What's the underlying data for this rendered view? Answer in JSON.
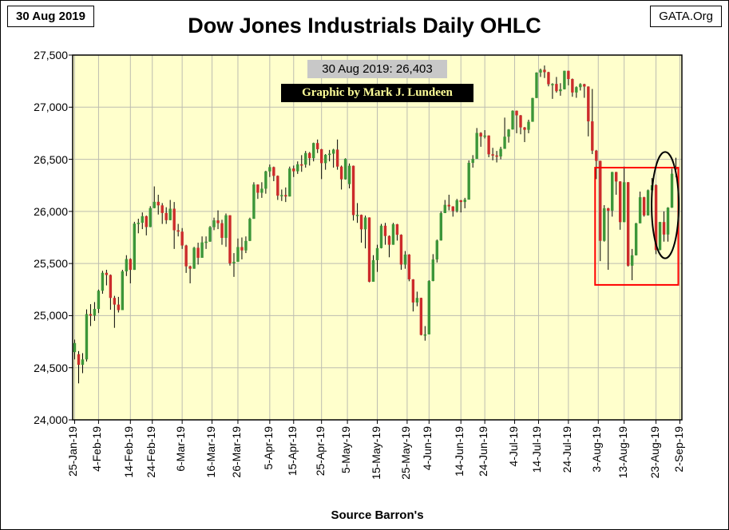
{
  "page": {
    "date_box": "30 Aug 2019",
    "org_box": "GATA.Org",
    "title": "Dow Jones Industrials Daily OHLC",
    "price_callout": "30 Aug 2019: 26,403",
    "credit": "Graphic by Mark J. Lundeen",
    "source": "Source Barron's"
  },
  "chart_data": {
    "type": "candlestick-ohlc",
    "title": "Dow Jones Industrials Daily OHLC",
    "ylim": [
      24000,
      27500
    ],
    "y_tick_step": 500,
    "y_tick_labels": [
      "27,500",
      "27,000",
      "26,500",
      "26,000",
      "25,500",
      "25,000",
      "24,500",
      "24,000"
    ],
    "x_ticks": [
      {
        "label": "25-Jan-19",
        "index": 0
      },
      {
        "label": "4-Feb-19",
        "index": 6
      },
      {
        "label": "14-Feb-19",
        "index": 14
      },
      {
        "label": "24-Feb-19",
        "index": 19.5
      },
      {
        "label": "6-Mar-19",
        "index": 27
      },
      {
        "label": "16-Mar-19",
        "index": 34.5
      },
      {
        "label": "26-Mar-19",
        "index": 41
      },
      {
        "label": "5-Apr-19",
        "index": 49
      },
      {
        "label": "15-Apr-19",
        "index": 55
      },
      {
        "label": "25-Apr-19",
        "index": 62
      },
      {
        "label": "5-May-19",
        "index": 68.5
      },
      {
        "label": "15-May-19",
        "index": 76
      },
      {
        "label": "25-May-19",
        "index": 83.5
      },
      {
        "label": "4-Jun-19",
        "index": 89
      },
      {
        "label": "14-Jun-19",
        "index": 97
      },
      {
        "label": "24-Jun-19",
        "index": 103
      },
      {
        "label": "4-Jul-19",
        "index": 110.5
      },
      {
        "label": "14-Jul-19",
        "index": 116.5
      },
      {
        "label": "24-Jul-19",
        "index": 124
      },
      {
        "label": "3-Aug-19",
        "index": 131.5
      },
      {
        "label": "13-Aug-19",
        "index": 138
      },
      {
        "label": "23-Aug-19",
        "index": 146
      },
      {
        "label": "2-Sep-19",
        "index": 152
      }
    ],
    "num_slots": 153,
    "grid": true,
    "plot_bg": "#FFFFCC",
    "grid_color": "#BDBDB0",
    "up_color": "#3C9639",
    "down_color": "#CC2B2B",
    "wick_color": "#000000",
    "candles": [
      [
        "25-Jan-19",
        24650,
        24770,
        24580,
        24737
      ],
      [
        "28-Jan-19",
        24630,
        24660,
        24350,
        24528
      ],
      [
        "29-Jan-19",
        24528,
        24640,
        24448,
        24580
      ],
      [
        "30-Jan-19",
        24580,
        25060,
        24560,
        25015
      ],
      [
        "31-Jan-19",
        25015,
        25110,
        24900,
        25000
      ],
      [
        "1-Feb-19",
        25000,
        25130,
        24950,
        25064
      ],
      [
        "4-Feb-19",
        25064,
        25250,
        25025,
        25239
      ],
      [
        "5-Feb-19",
        25239,
        25430,
        25210,
        25411
      ],
      [
        "6-Feb-19",
        25411,
        25440,
        25290,
        25390
      ],
      [
        "7-Feb-19",
        25390,
        25395,
        25057,
        25170
      ],
      [
        "8-Feb-19",
        25170,
        25190,
        24883,
        25106
      ],
      [
        "11-Feb-19",
        25106,
        25180,
        25030,
        25053
      ],
      [
        "12-Feb-19",
        25053,
        25440,
        25053,
        25425
      ],
      [
        "13-Feb-19",
        25425,
        25580,
        25380,
        25543
      ],
      [
        "14-Feb-19",
        25543,
        25550,
        25310,
        25439
      ],
      [
        "15-Feb-19",
        25439,
        25900,
        25439,
        25883
      ],
      [
        "19-Feb-19",
        25883,
        25930,
        25790,
        25891
      ],
      [
        "20-Feb-19",
        25891,
        25990,
        25830,
        25954
      ],
      [
        "21-Feb-19",
        25954,
        25960,
        25770,
        25850
      ],
      [
        "22-Feb-19",
        25850,
        26050,
        25848,
        26032
      ],
      [
        "25-Feb-19",
        26032,
        26240,
        26030,
        26092
      ],
      [
        "26-Feb-19",
        26092,
        26160,
        25970,
        26058
      ],
      [
        "27-Feb-19",
        26058,
        26080,
        25880,
        25985
      ],
      [
        "28-Feb-19",
        25985,
        26040,
        25880,
        25916
      ],
      [
        "1-Mar-19",
        25916,
        26110,
        25915,
        26026
      ],
      [
        "4-Mar-19",
        26026,
        26090,
        25640,
        25819
      ],
      [
        "5-Mar-19",
        25819,
        25880,
        25760,
        25806
      ],
      [
        "6-Mar-19",
        25806,
        25840,
        25640,
        25673
      ],
      [
        "7-Mar-19",
        25673,
        25680,
        25410,
        25473
      ],
      [
        "8-Mar-19",
        25473,
        25480,
        25310,
        25450
      ],
      [
        "11-Mar-19",
        25450,
        25660,
        25450,
        25651
      ],
      [
        "12-Mar-19",
        25651,
        25700,
        25490,
        25555
      ],
      [
        "13-Mar-19",
        25555,
        25760,
        25555,
        25703
      ],
      [
        "14-Mar-19",
        25703,
        25760,
        25640,
        25710
      ],
      [
        "15-Mar-19",
        25710,
        25860,
        25708,
        25849
      ],
      [
        "18-Mar-19",
        25849,
        25940,
        25820,
        25914
      ],
      [
        "19-Mar-19",
        25914,
        26010,
        25830,
        25887
      ],
      [
        "20-Mar-19",
        25887,
        25920,
        25680,
        25746
      ],
      [
        "21-Mar-19",
        25746,
        25980,
        25660,
        25963
      ],
      [
        "22-Mar-19",
        25963,
        25964,
        25480,
        25502
      ],
      [
        "25-Mar-19",
        25502,
        25600,
        25372,
        25517
      ],
      [
        "26-Mar-19",
        25517,
        25740,
        25517,
        25658
      ],
      [
        "27-Mar-19",
        25658,
        25750,
        25540,
        25626
      ],
      [
        "28-Mar-19",
        25626,
        25760,
        25600,
        25717
      ],
      [
        "29-Mar-19",
        25717,
        25940,
        25715,
        25929
      ],
      [
        "1-Apr-19",
        25929,
        26280,
        25929,
        26258
      ],
      [
        "2-Apr-19",
        26258,
        26260,
        26120,
        26179
      ],
      [
        "3-Apr-19",
        26179,
        26280,
        26130,
        26218
      ],
      [
        "4-Apr-19",
        26218,
        26390,
        26170,
        26384
      ],
      [
        "5-Apr-19",
        26384,
        26450,
        26330,
        26425
      ],
      [
        "8-Apr-19",
        26425,
        26430,
        26290,
        26341
      ],
      [
        "9-Apr-19",
        26341,
        26345,
        26110,
        26151
      ],
      [
        "10-Apr-19",
        26151,
        26210,
        26100,
        26157
      ],
      [
        "11-Apr-19",
        26157,
        26230,
        26090,
        26143
      ],
      [
        "12-Apr-19",
        26143,
        26430,
        26143,
        26412
      ],
      [
        "15-Apr-19",
        26412,
        26440,
        26330,
        26385
      ],
      [
        "16-Apr-19",
        26385,
        26480,
        26360,
        26452
      ],
      [
        "17-Apr-19",
        26452,
        26540,
        26380,
        26449
      ],
      [
        "18-Apr-19",
        26449,
        26580,
        26420,
        26560
      ],
      [
        "22-Apr-19",
        26560,
        26570,
        26440,
        26511
      ],
      [
        "23-Apr-19",
        26511,
        26660,
        26480,
        26656
      ],
      [
        "24-Apr-19",
        26656,
        26690,
        26560,
        26597
      ],
      [
        "25-Apr-19",
        26597,
        26600,
        26310,
        26463
      ],
      [
        "26-Apr-19",
        26463,
        26550,
        26400,
        26543
      ],
      [
        "29-Apr-19",
        26543,
        26590,
        26480,
        26554
      ],
      [
        "30-Apr-19",
        26554,
        26600,
        26420,
        26593
      ],
      [
        "1-May-19",
        26593,
        26690,
        26400,
        26430
      ],
      [
        "2-May-19",
        26430,
        26440,
        26210,
        26308
      ],
      [
        "3-May-19",
        26308,
        26510,
        26305,
        26505
      ],
      [
        "6-May-19",
        26262,
        26460,
        26221,
        26438
      ],
      [
        "7-May-19",
        26438,
        26440,
        25912,
        25965
      ],
      [
        "8-May-19",
        25965,
        26080,
        25890,
        25967
      ],
      [
        "9-May-19",
        25967,
        25970,
        25700,
        25828
      ],
      [
        "10-May-19",
        25828,
        25960,
        25645,
        25942
      ],
      [
        "13-May-19",
        25942,
        25943,
        25320,
        25325
      ],
      [
        "14-May-19",
        25325,
        25580,
        25325,
        25532
      ],
      [
        "15-May-19",
        25532,
        25680,
        25420,
        25648
      ],
      [
        "16-May-19",
        25648,
        25880,
        25645,
        25863
      ],
      [
        "17-May-19",
        25863,
        25890,
        25680,
        25764
      ],
      [
        "20-May-19",
        25764,
        25770,
        25560,
        25680
      ],
      [
        "21-May-19",
        25680,
        25890,
        25680,
        25877
      ],
      [
        "22-May-19",
        25877,
        25880,
        25720,
        25776
      ],
      [
        "23-May-19",
        25776,
        25780,
        25440,
        25490
      ],
      [
        "24-May-19",
        25490,
        25620,
        25450,
        25586
      ],
      [
        "28-May-19",
        25586,
        25590,
        25330,
        25348
      ],
      [
        "29-May-19",
        25348,
        25350,
        25040,
        25126
      ],
      [
        "30-May-19",
        25126,
        25230,
        25090,
        25170
      ],
      [
        "31-May-19",
        25170,
        25172,
        24810,
        24815
      ],
      [
        "3-Jun-19",
        24815,
        24900,
        24760,
        24820
      ],
      [
        "4-Jun-19",
        24820,
        25340,
        24820,
        25332
      ],
      [
        "5-Jun-19",
        25332,
        25590,
        25330,
        25539
      ],
      [
        "6-Jun-19",
        25539,
        25730,
        25510,
        25721
      ],
      [
        "7-Jun-19",
        25721,
        26000,
        25720,
        25984
      ],
      [
        "10-Jun-19",
        25984,
        26110,
        25984,
        26063
      ],
      [
        "11-Jun-19",
        26063,
        26160,
        26010,
        26048
      ],
      [
        "12-Jun-19",
        26048,
        26050,
        25950,
        26004
      ],
      [
        "13-Jun-19",
        26004,
        26120,
        25990,
        26107
      ],
      [
        "14-Jun-19",
        26107,
        26110,
        25990,
        26090
      ],
      [
        "17-Jun-19",
        26090,
        26130,
        26030,
        26113
      ],
      [
        "18-Jun-19",
        26113,
        26490,
        26113,
        26466
      ],
      [
        "19-Jun-19",
        26466,
        26540,
        26420,
        26504
      ],
      [
        "20-Jun-19",
        26504,
        26800,
        26504,
        26753
      ],
      [
        "21-Jun-19",
        26753,
        26760,
        26620,
        26719
      ],
      [
        "24-Jun-19",
        26719,
        26780,
        26700,
        26728
      ],
      [
        "25-Jun-19",
        26728,
        26730,
        26520,
        26548
      ],
      [
        "26-Jun-19",
        26548,
        26610,
        26490,
        26537
      ],
      [
        "27-Jun-19",
        26537,
        26580,
        26470,
        26527
      ],
      [
        "28-Jun-19",
        26527,
        26620,
        26500,
        26600
      ],
      [
        "1-Jul-19",
        26600,
        26900,
        26600,
        26717
      ],
      [
        "2-Jul-19",
        26717,
        26790,
        26660,
        26786
      ],
      [
        "3-Jul-19",
        26786,
        26970,
        26785,
        26966
      ],
      [
        "5-Jul-19",
        26966,
        26968,
        26750,
        26922
      ],
      [
        "8-Jul-19",
        26922,
        26925,
        26740,
        26806
      ],
      [
        "9-Jul-19",
        26806,
        26810,
        26665,
        26783
      ],
      [
        "10-Jul-19",
        26783,
        26880,
        26750,
        26860
      ],
      [
        "11-Jul-19",
        26860,
        27090,
        26860,
        27088
      ],
      [
        "12-Jul-19",
        27088,
        27335,
        27088,
        27332
      ],
      [
        "15-Jul-19",
        27332,
        27370,
        27290,
        27359
      ],
      [
        "16-Jul-19",
        27359,
        27400,
        27280,
        27336
      ],
      [
        "17-Jul-19",
        27336,
        27340,
        27200,
        27220
      ],
      [
        "18-Jul-19",
        27220,
        27230,
        27080,
        27223
      ],
      [
        "19-Jul-19",
        27223,
        27290,
        27140,
        27154
      ],
      [
        "22-Jul-19",
        27154,
        27230,
        27110,
        27172
      ],
      [
        "23-Jul-19",
        27172,
        27350,
        27170,
        27349
      ],
      [
        "24-Jul-19",
        27349,
        27350,
        27210,
        27270
      ],
      [
        "25-Jul-19",
        27270,
        27275,
        27100,
        27141
      ],
      [
        "26-Jul-19",
        27141,
        27200,
        27090,
        27192
      ],
      [
        "29-Jul-19",
        27192,
        27230,
        27160,
        27221
      ],
      [
        "30-Jul-19",
        27221,
        27225,
        27090,
        27198
      ],
      [
        "31-Jul-19",
        27198,
        27200,
        26720,
        26864
      ],
      [
        "1-Aug-19",
        26864,
        27175,
        26550,
        26583
      ],
      [
        "2-Aug-19",
        26583,
        26590,
        26310,
        26485
      ],
      [
        "5-Aug-19",
        26485,
        26487,
        25523,
        25718
      ],
      [
        "6-Aug-19",
        25718,
        26060,
        25710,
        26030
      ],
      [
        "7-Aug-19",
        26030,
        26035,
        25440,
        26007
      ],
      [
        "8-Aug-19",
        26007,
        26380,
        25950,
        26378
      ],
      [
        "9-Aug-19",
        26378,
        26380,
        26160,
        26287
      ],
      [
        "12-Aug-19",
        26287,
        26290,
        25824,
        25897
      ],
      [
        "13-Aug-19",
        25897,
        26430,
        25897,
        26280
      ],
      [
        "14-Aug-19",
        26280,
        26282,
        25471,
        25479
      ],
      [
        "15-Aug-19",
        25479,
        25640,
        25340,
        25579
      ],
      [
        "16-Aug-19",
        25579,
        25890,
        25577,
        25886
      ],
      [
        "19-Aug-19",
        25886,
        26190,
        25886,
        26136
      ],
      [
        "20-Aug-19",
        26136,
        26140,
        25950,
        25962
      ],
      [
        "21-Aug-19",
        25962,
        26210,
        25960,
        26203
      ],
      [
        "22-Aug-19",
        26203,
        26320,
        26150,
        26252
      ],
      [
        "23-Aug-19",
        26252,
        26260,
        25590,
        25629
      ],
      [
        "26-Aug-19",
        25629,
        25900,
        25627,
        25898
      ],
      [
        "27-Aug-19",
        25898,
        26000,
        25710,
        25778
      ],
      [
        "28-Aug-19",
        25778,
        26040,
        25710,
        26036
      ],
      [
        "29-Aug-19",
        26036,
        26410,
        26034,
        26362
      ],
      [
        "30-Aug-19",
        26425,
        26515,
        26330,
        26403
      ]
    ],
    "annotations": {
      "red_box": {
        "start_index": 130.7,
        "end_index": 151.6,
        "top_value": 26420,
        "bottom_value": 25295,
        "color": "#FF0000"
      },
      "ellipse": {
        "center_index": 148.3,
        "center_value": 26060,
        "rx_index": 3.4,
        "ry_value": 510,
        "color": "#000000"
      }
    }
  }
}
